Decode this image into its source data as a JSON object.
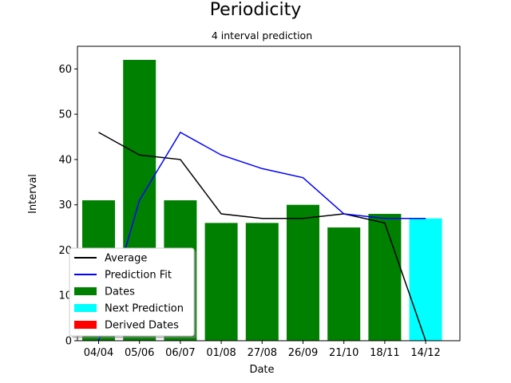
{
  "chart_data": {
    "type": "bar",
    "title": "Periodicity",
    "subtitle": "4 interval prediction",
    "xlabel": "Date",
    "ylabel": "Interval",
    "ylim": [
      0,
      65
    ],
    "yticks": [
      0,
      10,
      20,
      30,
      40,
      50,
      60
    ],
    "categories": [
      "04/04",
      "05/06",
      "06/07",
      "01/08",
      "27/08",
      "26/09",
      "21/10",
      "18/11",
      "14/12"
    ],
    "series": [
      {
        "name": "Average",
        "kind": "line",
        "color": "#000000",
        "values": [
          46,
          41,
          40,
          28,
          27,
          27,
          28,
          26,
          0
        ]
      },
      {
        "name": "Prediction Fit",
        "kind": "line",
        "color": "#0000ff",
        "values": [
          0,
          31,
          46,
          41,
          38,
          36,
          28,
          27,
          27
        ]
      },
      {
        "name": "Dates",
        "kind": "bar",
        "color": "#008000",
        "values": [
          31,
          62,
          31,
          26,
          26,
          30,
          25,
          28,
          null
        ]
      },
      {
        "name": "Next Prediction",
        "kind": "bar",
        "color": "#00ffff",
        "values": [
          null,
          null,
          null,
          null,
          null,
          null,
          null,
          null,
          27
        ]
      },
      {
        "name": "Derived Dates",
        "kind": "bar",
        "color": "#ff0000",
        "values": [
          null,
          null,
          null,
          null,
          null,
          null,
          null,
          null,
          null
        ]
      }
    ],
    "legend": "lower-left"
  }
}
